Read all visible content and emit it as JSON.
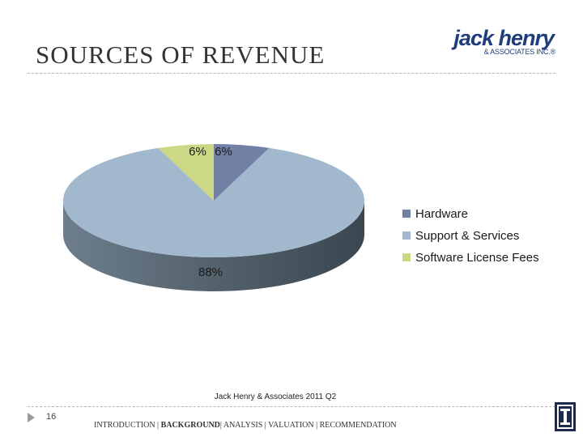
{
  "slide": {
    "title": "SOURCES OF REVENUE",
    "caption": "Jack Henry & Associates 2011 Q2",
    "page_number": "16"
  },
  "logo": {
    "main": "jack henry",
    "sub": "& ASSOCIATES INC.®"
  },
  "breadcrumb": {
    "items": [
      {
        "label": "INTRODUCTION |",
        "bold": false
      },
      {
        "label": "BACKGROUND",
        "bold": true
      },
      {
        "label": "| ANALYSIS | VALUATION | RECOMMENDATION",
        "bold": false
      }
    ]
  },
  "chart_data": {
    "type": "pie",
    "title": "",
    "series": [
      {
        "name": "Hardware",
        "value": 6,
        "label": "6%",
        "color": "#7380a6"
      },
      {
        "name": "Support & Services",
        "value": 88,
        "label": "88%",
        "color": "#a2b8cc"
      },
      {
        "name": "Software License Fees",
        "value": 6,
        "label": "6%",
        "color": "#cdd887"
      }
    ],
    "legend_position": "right",
    "style": "3d"
  }
}
